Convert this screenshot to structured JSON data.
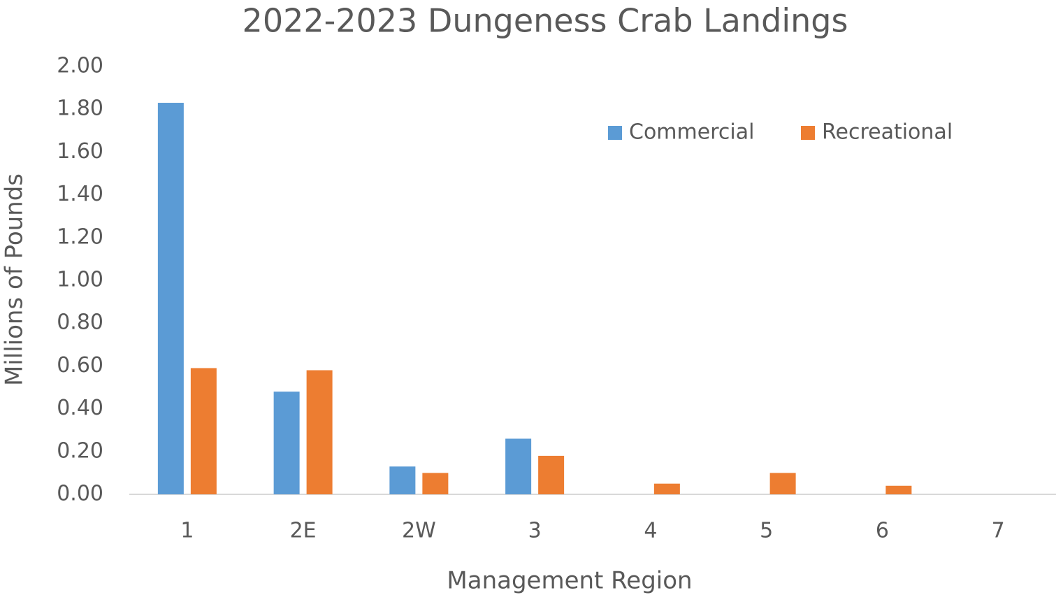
{
  "chart_data": {
    "type": "bar",
    "title": "2022-2023 Dungeness Crab Landings",
    "x_label": "Management Region",
    "y_label": "Millions of Pounds",
    "categories": [
      "1",
      "2E",
      "2W",
      "3",
      "4",
      "5",
      "6",
      "7"
    ],
    "series": [
      {
        "name": "Commercial",
        "color": "#5b9bd5",
        "values": [
          1.83,
          0.48,
          0.13,
          0.26,
          0,
          0,
          0,
          0
        ]
      },
      {
        "name": "Recreational",
        "color": "#ed7d31",
        "values": [
          0.59,
          0.58,
          0.1,
          0.18,
          0.05,
          0.1,
          0.04,
          0
        ]
      }
    ],
    "ylim": [
      0,
      2
    ],
    "yticks": [
      {
        "value": 0,
        "label": "0.00"
      },
      {
        "value": 0.2,
        "label": "0.20"
      },
      {
        "value": 0.4,
        "label": "0.40"
      },
      {
        "value": 0.6,
        "label": "0.60"
      },
      {
        "value": 0.8,
        "label": "0.80"
      },
      {
        "value": 1,
        "label": "1.00"
      },
      {
        "value": 1.2,
        "label": "1.20"
      },
      {
        "value": 1.4,
        "label": "1.40"
      },
      {
        "value": 1.6,
        "label": "1.60"
      },
      {
        "value": 1.8,
        "label": "1.80"
      },
      {
        "value": 2,
        "label": "2.00"
      }
    ],
    "grid": false,
    "legend": "top-right"
  }
}
